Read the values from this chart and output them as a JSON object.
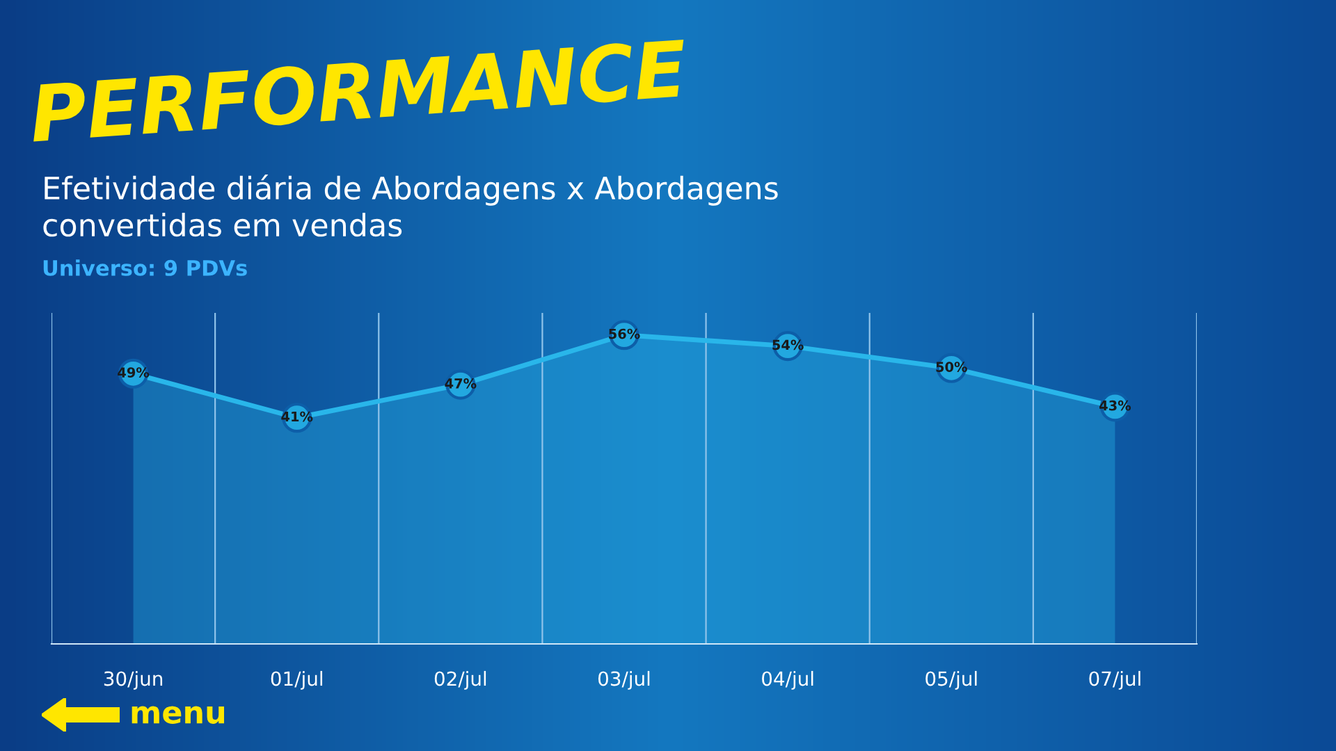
{
  "chart_data": {
    "type": "area",
    "title": "PERFORMANCE",
    "subtitle": "Efetividade diária de Abordagens x Abordagens\nconvertidas em vendas",
    "annotations": [
      "Universo: 9 PDVs",
      "menu"
    ],
    "categories": [
      "30/jun",
      "01/jul",
      "02/jul",
      "03/jul",
      "04/jul",
      "05/jul",
      "07/jul"
    ],
    "series": [
      {
        "color": "#29b6ea",
        "values": [
          49,
          41,
          47,
          56,
          54,
          50,
          43
        ],
        "value_labels": [
          "49%",
          "41%",
          "47%",
          "56%",
          "54%",
          "50%",
          "43%"
        ]
      }
    ],
    "ylim": [
      0,
      60
    ],
    "marker": "circle",
    "line_style": "solid",
    "grid": "x",
    "tick_labels": "x",
    "legend": false
  }
}
